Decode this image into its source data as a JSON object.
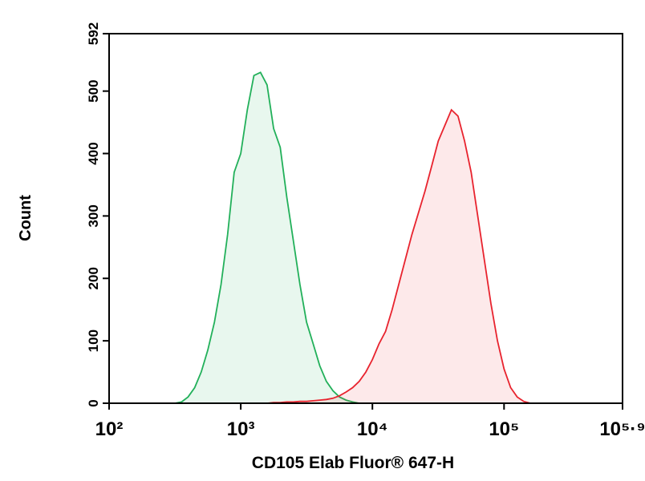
{
  "chart_data": {
    "type": "histogram-overlay",
    "xlabel": "CD105 Elab Fluor® 647-H",
    "ylabel": "Count",
    "xscale": "log",
    "xlim": [
      100,
      794328
    ],
    "xticks": [
      {
        "value": 100,
        "label": "10²"
      },
      {
        "value": 1000,
        "label": "10³"
      },
      {
        "value": 10000,
        "label": "10⁴"
      },
      {
        "value": 100000,
        "label": "10⁵"
      },
      {
        "value": 794328,
        "label": "10⁵·⁹"
      }
    ],
    "ylim": [
      0,
      592
    ],
    "yticks": [
      0,
      100,
      200,
      300,
      400,
      500,
      592
    ],
    "series": [
      {
        "color": "#22b05a",
        "x": [
          316,
          355,
          398,
          447,
          501,
          562,
          631,
          708,
          794,
          891,
          1000,
          1122,
          1259,
          1413,
          1585,
          1778,
          1995,
          2239,
          2512,
          2818,
          3162,
          3548,
          3981,
          4467,
          5012,
          5623,
          6310,
          7079,
          7943
        ],
        "values": [
          0,
          2,
          10,
          25,
          50,
          85,
          130,
          190,
          270,
          370,
          400,
          470,
          525,
          530,
          510,
          440,
          410,
          330,
          260,
          190,
          130,
          95,
          60,
          35,
          20,
          10,
          5,
          2,
          0
        ]
      },
      {
        "color": "#e8232e",
        "x": [
          1585,
          1778,
          1995,
          2239,
          2512,
          2818,
          3162,
          3548,
          3981,
          4467,
          5012,
          5623,
          6310,
          7079,
          7943,
          8913,
          10000,
          11220,
          12589,
          14125,
          15849,
          17783,
          19953,
          22387,
          25119,
          28184,
          31623,
          35481,
          39811,
          44668,
          50119,
          56234,
          63096,
          70795,
          79433,
          89125,
          100000,
          112202,
          125893,
          141254,
          158489
        ],
        "values": [
          0,
          1,
          1,
          2,
          2,
          3,
          3,
          4,
          5,
          6,
          8,
          12,
          18,
          25,
          35,
          50,
          70,
          95,
          115,
          150,
          190,
          230,
          270,
          305,
          340,
          380,
          420,
          445,
          470,
          460,
          420,
          370,
          300,
          230,
          160,
          100,
          55,
          25,
          10,
          3,
          0
        ]
      }
    ]
  }
}
